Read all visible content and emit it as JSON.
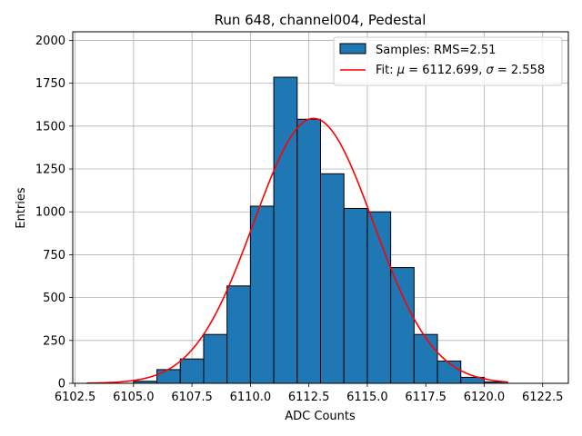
{
  "chart_data": {
    "type": "bar",
    "title": "Run 648, channel004, Pedestal",
    "xlabel": "ADC Counts",
    "ylabel": "Entries",
    "xlim": [
      6102.4,
      6123.6
    ],
    "ylim": [
      0,
      2050
    ],
    "xticks": [
      6102.5,
      6105.0,
      6107.5,
      6110.0,
      6112.5,
      6115.0,
      6117.5,
      6120.0,
      6122.5
    ],
    "xtick_labels": [
      "6102.5",
      "6105.0",
      "6107.5",
      "6110.0",
      "6112.5",
      "6115.0",
      "6117.5",
      "6120.0",
      "6122.5"
    ],
    "yticks": [
      0,
      250,
      500,
      750,
      1000,
      1250,
      1500,
      1750,
      2000
    ],
    "ytick_labels": [
      "0",
      "250",
      "500",
      "750",
      "1000",
      "1250",
      "1500",
      "1750",
      "2000"
    ],
    "grid": true,
    "legend_position": "top-right",
    "histogram": {
      "name": "Samples: RMS=2.51",
      "color": "#1f77b4",
      "edge_color": "#000000",
      "bin_edges": [
        6105,
        6106,
        6107,
        6108,
        6109,
        6110,
        6111,
        6112,
        6113,
        6114,
        6115,
        6116,
        6117,
        6118,
        6119,
        6120,
        6121
      ],
      "counts": [
        12,
        80,
        142,
        285,
        568,
        1033,
        1785,
        1540,
        1222,
        1020,
        1000,
        675,
        285,
        130,
        35,
        8
      ]
    },
    "fit": {
      "name": "Fit: μ = 6112.699, σ = 2.558",
      "legend_prefix": "Fit: ",
      "legend_mu_symbol": "μ",
      "legend_mu_value": " = 6112.699, ",
      "legend_sigma_symbol": "σ",
      "legend_sigma_value": " = 2.558",
      "color": "#ff0000",
      "mu": 6112.699,
      "sigma": 2.558,
      "amplitude": 1545,
      "x_range": [
        6103,
        6121
      ]
    }
  }
}
